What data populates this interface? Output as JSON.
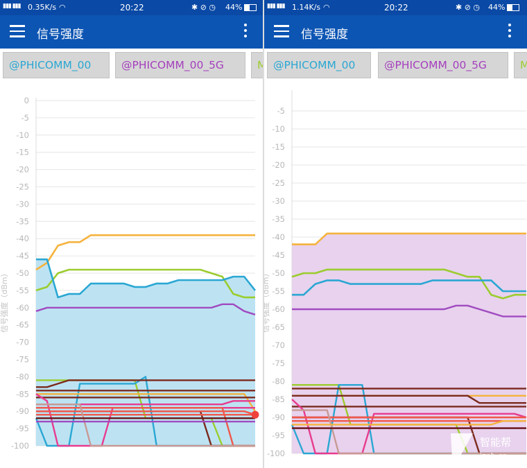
{
  "panes": [
    {
      "status": {
        "signal": "▮▮▮ ▮▮▮",
        "speed": "0.35K/s",
        "time": "20:22",
        "icons": "✱ ⊘ ◷",
        "battery": "44%"
      },
      "app": {
        "title": "信号强度"
      },
      "tabs": [
        {
          "label": "@PHICOMM_00",
          "color": "#2aa7d3",
          "active": true
        },
        {
          "label": "@PHICOMM_00_5G",
          "color": "#a53fbe",
          "active": false
        },
        {
          "label": "M",
          "color": "#9ccc2e",
          "active": false
        }
      ]
    },
    {
      "status": {
        "signal": "▮▮▮ ▮▮▮",
        "speed": "1.14K/s",
        "time": "20:22",
        "icons": "✱ ⊘ ◷",
        "battery": "44%"
      },
      "app": {
        "title": "信号强度"
      },
      "tabs": [
        {
          "label": "@PHICOMM_00",
          "color": "#2aa7d3",
          "active": false
        },
        {
          "label": "@PHICOMM_00_5G",
          "color": "#a53fbe",
          "active": true
        },
        {
          "label": "M",
          "color": "#9ccc2e",
          "active": false
        }
      ]
    }
  ],
  "watermark": {
    "brand": "智能帮",
    "url": "iznb.cn"
  },
  "chart_data": [
    {
      "type": "line",
      "ylabel": "信号强度（dBm）",
      "ylim": [
        -100,
        0
      ],
      "yticks": [
        0,
        -5,
        -10,
        -15,
        -20,
        -25,
        -30,
        -35,
        -40,
        -45,
        -50,
        -55,
        -60,
        -65,
        -70,
        -75,
        -80,
        -85,
        -90,
        -95,
        -100
      ],
      "grid": true,
      "highlight": {
        "series": "@PHICOMM_00",
        "color": "#bde3f3"
      },
      "x": [
        0,
        1,
        2,
        3,
        4,
        5,
        6,
        7,
        8,
        9,
        10,
        11,
        12,
        13,
        14,
        15,
        16,
        17,
        18,
        19,
        20
      ],
      "series": [
        {
          "name": "@PHICOMM_00_5G",
          "color": "#f5b23c",
          "values": [
            -49,
            -47,
            -42,
            -41,
            -41,
            -39,
            -39,
            -39,
            -39,
            -39,
            -39,
            -39,
            -39,
            -39,
            -39,
            -39,
            -39,
            -39,
            -39,
            -39,
            -39
          ]
        },
        {
          "name": "M",
          "color": "#9ccc2e",
          "values": [
            -55,
            -54,
            -50,
            -49,
            -49,
            -49,
            -49,
            -49,
            -49,
            -49,
            -49,
            -49,
            -49,
            -49,
            -49,
            -49,
            -50,
            -51,
            -56,
            -57,
            -57
          ]
        },
        {
          "name": "@PHICOMM_00",
          "color": "#2aa7d3",
          "values": [
            -46,
            -46,
            -57,
            -56,
            -56,
            -53,
            -53,
            -53,
            -53,
            -54,
            -54,
            -53,
            -53,
            -52,
            -52,
            -52,
            -52,
            -52,
            -51,
            -51,
            -55
          ]
        },
        {
          "color": "#a04bc0",
          "values": [
            -61,
            -60,
            -60,
            -60,
            -60,
            -60,
            -60,
            -60,
            -60,
            -60,
            -60,
            -60,
            -60,
            -60,
            -60,
            -60,
            -60,
            -59,
            -59,
            -61,
            -62
          ]
        },
        {
          "color": "#9ccc2e",
          "values": [
            -81,
            -81,
            -81,
            -81,
            -81,
            -81,
            -81,
            -81,
            -81,
            -81,
            -92,
            -92,
            -92,
            -92,
            -92,
            -92,
            -92,
            -100,
            -100,
            -100,
            -100
          ]
        },
        {
          "color": "#2aa7d3",
          "values": [
            -92,
            -100,
            -100,
            -100,
            -82,
            -82,
            -82,
            -82,
            -82,
            -82,
            -80,
            -100,
            -100,
            -100,
            -100,
            -100,
            -100,
            -100,
            -100,
            -100,
            -100
          ]
        },
        {
          "color": "#f5b23c",
          "values": [
            -85,
            -85,
            -85,
            -85,
            -85,
            -85,
            -85,
            -85,
            -85,
            -85,
            -85,
            -85,
            -85,
            -85,
            -85,
            -85,
            -85,
            -85,
            -85,
            -85,
            -90
          ]
        },
        {
          "color": "#7b2a1d",
          "values": [
            -83,
            -83,
            -82,
            -81,
            -81,
            -81,
            -81,
            -81,
            -81,
            -81,
            -81,
            -81,
            -81,
            -81,
            -81,
            -81,
            -81,
            -81,
            -81,
            -81,
            -81
          ]
        },
        {
          "color": "#7b2a1d",
          "values": [
            -84,
            -84,
            -84,
            -84,
            -84,
            -84,
            -84,
            -84,
            -84,
            -84,
            -84,
            -84,
            -84,
            -84,
            -84,
            -84,
            -84,
            -84,
            -84,
            -84,
            -84
          ]
        },
        {
          "color": "#7b2a1d",
          "values": [
            -86,
            -86,
            -86,
            -86,
            -86,
            -86,
            -86,
            -86,
            -86,
            -86,
            -86,
            -86,
            -86,
            -86,
            -86,
            -86,
            -86,
            -86,
            -86,
            -86,
            -86
          ]
        },
        {
          "color": "#7b2a1d",
          "values": [
            -90,
            -90,
            -90,
            -90,
            -90,
            -90,
            -90,
            -90,
            -90,
            -90,
            -90,
            -90,
            -90,
            -90,
            -90,
            -90,
            -100,
            -100,
            -100,
            -100,
            -100
          ]
        },
        {
          "color": "#e83b8f",
          "values": [
            -85,
            -87,
            -100,
            -100,
            -100,
            -100,
            -100,
            -89,
            -89,
            -89,
            -89,
            -89,
            -89,
            -89,
            -89,
            -89,
            -89,
            -89,
            -89,
            -89,
            -89
          ]
        },
        {
          "color": "#e83b8f",
          "values": [
            -88,
            -88,
            -88,
            -88,
            -88,
            -88,
            -88,
            -88,
            -88,
            -88,
            -88,
            -88,
            -88,
            -88,
            -88,
            -88,
            -88,
            -88,
            -87,
            -87,
            -87
          ]
        },
        {
          "color": "#f0584b",
          "values": [
            -90,
            -90,
            -90,
            -90,
            -90,
            -90,
            -90,
            -90,
            -90,
            -90,
            -90,
            -90,
            -90,
            -90,
            -90,
            -90,
            -90,
            -90,
            -90,
            -90,
            -91
          ]
        },
        {
          "color": "#f0584b",
          "values": [
            -91,
            -91,
            -91,
            -91,
            -91,
            -91,
            -91,
            -91,
            -91,
            -91,
            -91,
            -91,
            -91,
            -91,
            -91,
            -91,
            -91,
            -91,
            -91,
            -91,
            -91
          ]
        },
        {
          "color": "#f0584b",
          "values": [
            -89,
            -89,
            -89,
            -89,
            -89,
            -89,
            -89,
            -89,
            -89,
            -89,
            -89,
            -89,
            -89,
            -89,
            -89,
            -89,
            -89,
            -89,
            -100,
            -100,
            -100
          ]
        },
        {
          "color": "#c79a94",
          "values": [
            -88,
            -88,
            -88,
            -88,
            -88,
            -100,
            -100,
            -100,
            -100,
            -100,
            -100,
            -100,
            -100,
            -100,
            -100,
            -100,
            -100,
            -100,
            -100,
            -100,
            -100
          ]
        },
        {
          "color": "#a04bc0",
          "values": [
            -93,
            -93,
            -93,
            -93,
            -93,
            -93,
            -93,
            -93,
            -93,
            -93,
            -93,
            -93,
            -93,
            -93,
            -93,
            -93,
            -93,
            -93,
            -93,
            -93,
            -93
          ]
        },
        {
          "color": "#6b1818",
          "values": [
            -92,
            -92,
            -92,
            -92,
            -92,
            -92,
            -92,
            -92,
            -92,
            -92,
            -92,
            -92,
            -92,
            -92,
            -92,
            -92,
            -92,
            -92,
            -92,
            -92,
            -92
          ]
        }
      ]
    },
    {
      "type": "line",
      "ylabel": "信号强度（dBm）",
      "ylim": [
        -100,
        0
      ],
      "yticks": [
        -5,
        -10,
        -15,
        -20,
        -25,
        -30,
        -35,
        -40,
        -45,
        -50,
        -55,
        -60,
        -65,
        -70,
        -75,
        -80,
        -85,
        -90,
        -95,
        -100
      ],
      "grid": true,
      "highlight": {
        "series": "@PHICOMM_00_5G",
        "color": "#e8d2ee"
      },
      "x": [
        0,
        1,
        2,
        3,
        4,
        5,
        6,
        7,
        8,
        9,
        10,
        11,
        12,
        13,
        14,
        15,
        16,
        17,
        18,
        19,
        20
      ],
      "series": [
        {
          "name": "@PHICOMM_00_5G",
          "color": "#f5b23c",
          "values": [
            -42,
            -42,
            -42,
            -39,
            -39,
            -39,
            -39,
            -39,
            -39,
            -39,
            -39,
            -39,
            -39,
            -39,
            -39,
            -39,
            -39,
            -39,
            -39,
            -39,
            -39
          ]
        },
        {
          "name": "M",
          "color": "#9ccc2e",
          "values": [
            -51,
            -50,
            -50,
            -49,
            -49,
            -49,
            -49,
            -49,
            -49,
            -49,
            -49,
            -49,
            -49,
            -49,
            -50,
            -51,
            -51,
            -56,
            -57,
            -56,
            -56
          ]
        },
        {
          "name": "@PHICOMM_00",
          "color": "#2aa7d3",
          "values": [
            -56,
            -56,
            -53,
            -52,
            -52,
            -53,
            -53,
            -53,
            -53,
            -53,
            -53,
            -53,
            -52,
            -52,
            -52,
            -52,
            -52,
            -52,
            -55,
            -55,
            -55
          ]
        },
        {
          "color": "#a04bc0",
          "values": [
            -60,
            -60,
            -60,
            -60,
            -60,
            -60,
            -60,
            -60,
            -60,
            -60,
            -60,
            -60,
            -60,
            -60,
            -59,
            -59,
            -60,
            -61,
            -62,
            -62,
            -62
          ]
        },
        {
          "color": "#9ccc2e",
          "values": [
            -81,
            -81,
            -81,
            -81,
            -81,
            -92,
            -92,
            -92,
            -92,
            -92,
            -92,
            -92,
            -92,
            -92,
            -92,
            -100,
            -100,
            -100,
            -100,
            -100,
            -100
          ]
        },
        {
          "color": "#2aa7d3",
          "values": [
            -92,
            -100,
            -100,
            -100,
            -81,
            -81,
            -81,
            -100,
            -100,
            -100,
            -100,
            -100,
            -100,
            -100,
            -100,
            -100,
            -100,
            -100,
            -100,
            -100,
            -100
          ]
        },
        {
          "color": "#f5b23c",
          "values": [
            -84,
            -84,
            -84,
            -84,
            -84,
            -84,
            -84,
            -84,
            -84,
            -84,
            -84,
            -84,
            -84,
            -84,
            -84,
            -84,
            -84,
            -84,
            -84,
            -84,
            -84
          ]
        },
        {
          "color": "#7b2a1d",
          "values": [
            -82,
            -82,
            -82,
            -82,
            -82,
            -82,
            -82,
            -82,
            -82,
            -82,
            -82,
            -82,
            -82,
            -82,
            -82,
            -82,
            -82,
            -82,
            -82,
            -82,
            -82
          ]
        },
        {
          "color": "#7b2a1d",
          "values": [
            -84,
            -84,
            -84,
            -84,
            -84,
            -84,
            -84,
            -84,
            -84,
            -84,
            -84,
            -84,
            -84,
            -84,
            -84,
            -84,
            -86,
            -86,
            -86,
            -86,
            -86
          ]
        },
        {
          "color": "#7b2a1d",
          "values": [
            -87,
            -87,
            -87,
            -87,
            -87,
            -87,
            -87,
            -87,
            -87,
            -87,
            -87,
            -87,
            -87,
            -87,
            -87,
            -87,
            -87,
            -87,
            -87,
            -87,
            -87
          ]
        },
        {
          "color": "#7b2a1d",
          "values": [
            -90,
            -90,
            -90,
            -90,
            -90,
            -90,
            -90,
            -90,
            -90,
            -90,
            -90,
            -90,
            -90,
            -90,
            -90,
            -90,
            -100,
            -100,
            -100,
            -100,
            -100
          ]
        },
        {
          "color": "#e83b8f",
          "values": [
            -85,
            -88,
            -100,
            -100,
            -100,
            -100,
            -100,
            -89,
            -89,
            -89,
            -89,
            -89,
            -89,
            -89,
            -89,
            -89,
            -89,
            -89,
            -89,
            -89,
            -90
          ]
        },
        {
          "color": "#f0584b",
          "values": [
            -90,
            -90,
            -90,
            -90,
            -90,
            -90,
            -90,
            -90,
            -90,
            -90,
            -90,
            -90,
            -90,
            -90,
            -90,
            -90,
            -90,
            -90,
            -90,
            -90,
            -90
          ]
        },
        {
          "color": "#f0584b",
          "values": [
            -91,
            -91,
            -91,
            -91,
            -91,
            -91,
            -91,
            -91,
            -91,
            -91,
            -91,
            -91,
            -91,
            -91,
            -91,
            -91,
            -91,
            -91,
            -91,
            -91,
            -91
          ]
        },
        {
          "color": "#c79a94",
          "values": [
            -88,
            -88,
            -88,
            -88,
            -100,
            -100,
            -100,
            -100,
            -100,
            -100,
            -100,
            -100,
            -100,
            -100,
            -100,
            -100,
            -100,
            -100,
            -100,
            -100,
            -100
          ]
        },
        {
          "color": "#f5b23c",
          "values": [
            -92,
            -92,
            -92,
            -92,
            -92,
            -92,
            -92,
            -92,
            -92,
            -92,
            -92,
            -92,
            -92,
            -92,
            -92,
            -92,
            -92,
            -92,
            -91,
            -91,
            -91
          ]
        },
        {
          "color": "#a04bc0",
          "values": [
            -93,
            -93,
            -93,
            -93,
            -93,
            -93,
            -93,
            -93,
            -93,
            -93,
            -93,
            -93,
            -93,
            -93,
            -93,
            -93,
            -93,
            -93,
            -93,
            -93,
            -93
          ]
        },
        {
          "color": "#6b1818",
          "values": [
            -93,
            -93,
            -93,
            -93,
            -93,
            -93,
            -93,
            -93,
            -93,
            -93,
            -93,
            -93,
            -93,
            -93,
            -93,
            -93,
            -93,
            -93,
            -93,
            -93,
            -93
          ]
        }
      ]
    }
  ]
}
